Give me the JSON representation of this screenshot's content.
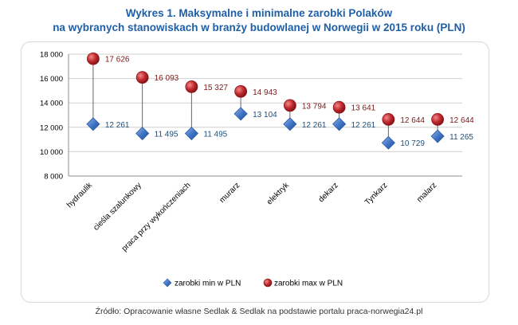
{
  "header": {
    "title_line1": "Wykres 1. Maksymalne i minimalne zarobki Polaków",
    "title_line2": "na wybranych stanowiskach w branży budowlanej w Norwegii w 2015 roku (PLN)"
  },
  "footer": {
    "source": "Źródło: Opracowanie własne Sedlak & Sedlak na podstawie portalu praca-norwegia24.pl"
  },
  "colors": {
    "min_marker": "#3d72c4",
    "max_marker": "#c0282d",
    "grid": "#d0d0d0",
    "title": "#1f5fa8"
  },
  "chart_data": {
    "type": "scatter",
    "title": "Wykres 1. Maksymalne i minimalne zarobki Polaków na wybranych stanowiskach w branży budowlanej w Norwegii w 2015 roku (PLN)",
    "categories": [
      "hydraulik",
      "cieśla szalunkowy",
      "praca przy wykończeniach",
      "murarz",
      "elektryk",
      "dekarz",
      "Tynkarz",
      "malarz"
    ],
    "series": [
      {
        "name": "zarobki min w PLN",
        "marker": "diamond",
        "values": [
          12261,
          11495,
          11495,
          13104,
          12261,
          12261,
          10729,
          11265
        ],
        "labels": [
          "12 261",
          "11 495",
          "11 495",
          "13 104",
          "12 261",
          "12 261",
          "10 729",
          "11 265"
        ]
      },
      {
        "name": "zarobki max w PLN",
        "marker": "circle",
        "values": [
          17626,
          16093,
          15327,
          14943,
          13794,
          13641,
          12644,
          12644
        ],
        "labels": [
          "17 626",
          "16 093",
          "15 327",
          "14 943",
          "13 794",
          "13 641",
          "12 644",
          "12 644"
        ]
      }
    ],
    "ylim": [
      8000,
      18000
    ],
    "yticks": [
      8000,
      10000,
      12000,
      14000,
      16000,
      18000
    ],
    "ytick_labels": [
      "8 000",
      "10 000",
      "12 000",
      "14 000",
      "16 000",
      "18 000"
    ],
    "xlabel": "",
    "ylabel": "",
    "grid": true,
    "legend": "bottom"
  }
}
